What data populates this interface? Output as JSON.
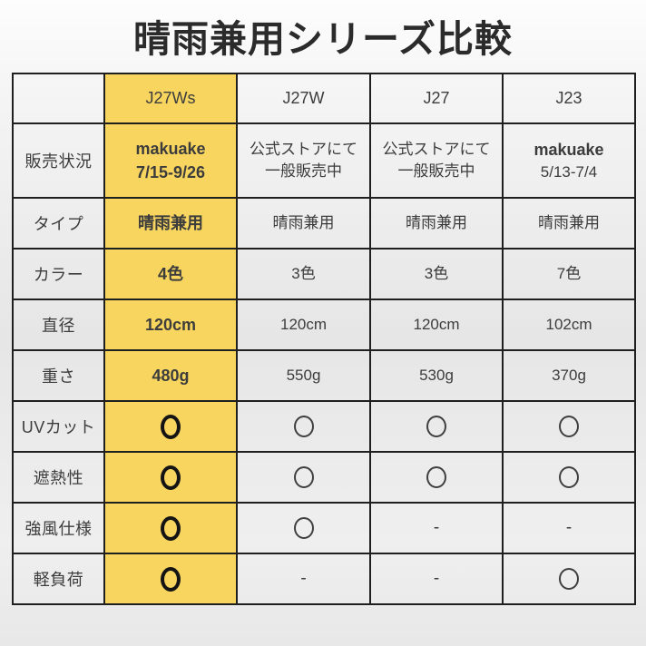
{
  "title": "晴雨兼用シリーズ比較",
  "colors": {
    "highlight": "#F8D55F",
    "border": "#1F1F1F",
    "cell_text": "#3C3C3C",
    "bold_text": "#161616"
  },
  "table": {
    "marks": {
      "dash": "-",
      "circle_meaning": "yes-mark"
    },
    "columns": [
      {
        "label": "",
        "highlight": false
      },
      {
        "label": "J27Ws",
        "highlight": true
      },
      {
        "label": "J27W",
        "highlight": false
      },
      {
        "label": "J27",
        "highlight": false
      },
      {
        "label": "J23",
        "highlight": false
      }
    ],
    "rows": [
      {
        "label": "販売状況",
        "cells": [
          {
            "kind": "text",
            "lines": [
              {
                "text": "makuake",
                "bold": true
              },
              {
                "text": "7/15-9/26",
                "bold": true
              }
            ]
          },
          {
            "kind": "text",
            "lines": [
              {
                "text": "公式ストアにて",
                "bold": false
              },
              {
                "text": "一般販売中",
                "bold": false
              }
            ]
          },
          {
            "kind": "text",
            "lines": [
              {
                "text": "公式ストアにて",
                "bold": false
              },
              {
                "text": "一般販売中",
                "bold": false
              }
            ]
          },
          {
            "kind": "text",
            "lines": [
              {
                "text": "makuake",
                "bold": true
              },
              {
                "text": "5/13-7/4",
                "bold": false
              }
            ]
          }
        ]
      },
      {
        "label": "タイプ",
        "cells": [
          {
            "kind": "text",
            "lines": [
              {
                "text": "晴雨兼用",
                "bold": true
              }
            ]
          },
          {
            "kind": "text",
            "lines": [
              {
                "text": "晴雨兼用",
                "bold": false
              }
            ]
          },
          {
            "kind": "text",
            "lines": [
              {
                "text": "晴雨兼用",
                "bold": false
              }
            ]
          },
          {
            "kind": "text",
            "lines": [
              {
                "text": "晴雨兼用",
                "bold": false
              }
            ]
          }
        ]
      },
      {
        "label": "カラー",
        "cells": [
          {
            "kind": "text",
            "lines": [
              {
                "text": "4色",
                "bold": true
              }
            ]
          },
          {
            "kind": "text",
            "lines": [
              {
                "text": "3色",
                "bold": false
              }
            ]
          },
          {
            "kind": "text",
            "lines": [
              {
                "text": "3色",
                "bold": false
              }
            ]
          },
          {
            "kind": "text",
            "lines": [
              {
                "text": "7色",
                "bold": false
              }
            ]
          }
        ]
      },
      {
        "label": "直径",
        "cells": [
          {
            "kind": "text",
            "lines": [
              {
                "text": "120cm",
                "bold": true
              }
            ]
          },
          {
            "kind": "text",
            "lines": [
              {
                "text": "120cm",
                "bold": false
              }
            ]
          },
          {
            "kind": "text",
            "lines": [
              {
                "text": "120cm",
                "bold": false
              }
            ]
          },
          {
            "kind": "text",
            "lines": [
              {
                "text": "102cm",
                "bold": false
              }
            ]
          }
        ]
      },
      {
        "label": "重さ",
        "cells": [
          {
            "kind": "text",
            "lines": [
              {
                "text": "480g",
                "bold": true
              }
            ]
          },
          {
            "kind": "text",
            "lines": [
              {
                "text": "550g",
                "bold": false
              }
            ]
          },
          {
            "kind": "text",
            "lines": [
              {
                "text": "530g",
                "bold": false
              }
            ]
          },
          {
            "kind": "text",
            "lines": [
              {
                "text": "370g",
                "bold": false
              }
            ]
          }
        ]
      },
      {
        "label": "UVカット",
        "cells": [
          {
            "kind": "circle",
            "bold": true
          },
          {
            "kind": "circle",
            "bold": false
          },
          {
            "kind": "circle",
            "bold": false
          },
          {
            "kind": "circle",
            "bold": false
          }
        ]
      },
      {
        "label": "遮熱性",
        "cells": [
          {
            "kind": "circle",
            "bold": true
          },
          {
            "kind": "circle",
            "bold": false
          },
          {
            "kind": "circle",
            "bold": false
          },
          {
            "kind": "circle",
            "bold": false
          }
        ]
      },
      {
        "label": "強風仕様",
        "cells": [
          {
            "kind": "circle",
            "bold": true
          },
          {
            "kind": "circle",
            "bold": false
          },
          {
            "kind": "dash"
          },
          {
            "kind": "dash"
          }
        ]
      },
      {
        "label": "軽負荷",
        "cells": [
          {
            "kind": "circle",
            "bold": true
          },
          {
            "kind": "dash"
          },
          {
            "kind": "dash"
          },
          {
            "kind": "circle",
            "bold": false
          }
        ]
      }
    ]
  }
}
